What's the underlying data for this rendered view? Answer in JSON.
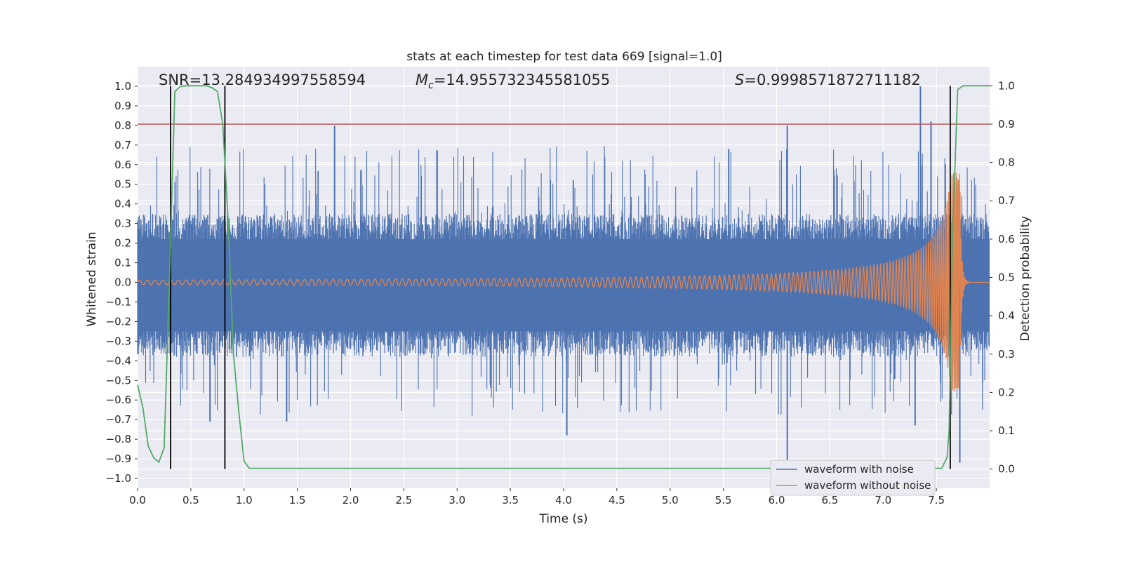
{
  "chart_data": {
    "type": "line",
    "title": "stats at each timestep for test data 669 [signal=1.0]",
    "xlabel": "Time (s)",
    "ylabel": "Whitened strain",
    "ylabel_right": "Detection probability",
    "xlim": [
      0,
      8
    ],
    "ylim": [
      -1.05,
      1.1
    ],
    "ylim_right": [
      -0.05,
      1.05
    ],
    "xticks": [
      0.0,
      0.5,
      1.0,
      1.5,
      2.0,
      2.5,
      3.0,
      3.5,
      4.0,
      4.5,
      5.0,
      5.5,
      6.0,
      6.5,
      7.0,
      7.5
    ],
    "xtick_labels": [
      "0.0",
      "0.5",
      "1.0",
      "1.5",
      "2.0",
      "2.5",
      "3.0",
      "3.5",
      "4.0",
      "4.5",
      "5.0",
      "5.5",
      "6.0",
      "6.5",
      "7.0",
      "7.5"
    ],
    "yticks": [
      1.0,
      0.9,
      0.8,
      0.7,
      0.6,
      0.5,
      0.4,
      0.3,
      0.2,
      0.1,
      0.0,
      -0.1,
      -0.2,
      -0.3,
      -0.4,
      -0.5,
      -0.6,
      -0.7,
      -0.8,
      -0.9,
      -1.0
    ],
    "ytick_labels": [
      "1.0",
      "0.9",
      "0.8",
      "0.7",
      "0.6",
      "0.5",
      "0.4",
      "0.3",
      "0.2",
      "0.1",
      "0.0",
      "−0.1",
      "−0.2",
      "−0.3",
      "−0.4",
      "−0.5",
      "−0.6",
      "−0.7",
      "−0.8",
      "−0.9",
      "−1.0"
    ],
    "yticks_right": [
      1.0,
      0.9,
      0.8,
      0.7,
      0.6,
      0.5,
      0.4,
      0.3,
      0.2,
      0.1,
      0.0
    ],
    "ytick_labels_right": [
      "1.0",
      "0.9",
      "0.8",
      "0.7",
      "0.6",
      "0.5",
      "0.4",
      "0.3",
      "0.2",
      "0.1",
      "0.0"
    ],
    "grid": true,
    "legend": "bottom-right",
    "annotations": {
      "snr": "SNR=13.284934997558594",
      "mc_prefix": "M",
      "mc_sub": "c",
      "mc_value": "=14.955732345581055",
      "s_prefix": "S",
      "s_value": "=0.9998571872711182"
    },
    "series": [
      {
        "name": "waveform with noise",
        "color": "#4c72b0",
        "description": "whitened noisy strain, approx. ±0.35 with spikes up to ±0.8; max ≈1.0 near t=7.4, min ≈−0.93 near t=6.1",
        "band_upper": 0.35,
        "band_lower": -0.38,
        "spikes": [
          [
            1.85,
            0.8
          ],
          [
            5.55,
            0.68
          ],
          [
            6.1,
            0.8
          ],
          [
            6.1,
            -0.93
          ],
          [
            7.35,
            1.0
          ],
          [
            7.72,
            -0.92
          ],
          [
            4.03,
            -0.78
          ],
          [
            0.68,
            -0.71
          ],
          [
            1.4,
            -0.71
          ],
          [
            7.3,
            -0.73
          ],
          [
            7.45,
            0.82
          ]
        ]
      },
      {
        "name": "waveform without noise",
        "color": "#dd8452",
        "description": "chirp signal, amplitude growing from 0.02 to ~0.56 at merger near t=7.7s, then ringdown",
        "merger_time": 7.72,
        "merger_peak": 0.56,
        "merger_trough": -0.64
      },
      {
        "name": "detection probability",
        "color": "#55a868",
        "axis": "right",
        "x": [
          0.0,
          0.05,
          0.1,
          0.15,
          0.2,
          0.25,
          0.3,
          0.35,
          0.4,
          0.45,
          0.5,
          0.55,
          0.6,
          0.65,
          0.7,
          0.75,
          0.8,
          0.85,
          0.9,
          0.95,
          1.0,
          1.05,
          1.1,
          1.5,
          2.0,
          2.5,
          3.0,
          3.5,
          4.0,
          4.5,
          5.0,
          5.5,
          6.0,
          6.5,
          7.0,
          7.5,
          7.55,
          7.6,
          7.62,
          7.65,
          7.7,
          7.75,
          7.8,
          7.9,
          8.0
        ],
        "values": [
          0.22,
          0.16,
          0.06,
          0.03,
          0.018,
          0.055,
          0.5,
          0.985,
          0.998,
          1.0,
          1.0,
          1.0,
          1.0,
          1.0,
          0.995,
          0.985,
          0.9,
          0.65,
          0.3,
          0.15,
          0.02,
          0.002,
          0.002,
          0.002,
          0.002,
          0.002,
          0.002,
          0.002,
          0.002,
          0.002,
          0.002,
          0.002,
          0.002,
          0.002,
          0.002,
          0.002,
          0.002,
          0.03,
          0.1,
          0.6,
          0.99,
          1.0,
          1.0,
          1.0,
          1.0
        ]
      }
    ],
    "threshold": {
      "axis": "right",
      "value": 0.9,
      "color": "#c44e52"
    },
    "vertical_markers": [
      0.31,
      0.82,
      7.63
    ],
    "marker_color": "#000000"
  }
}
